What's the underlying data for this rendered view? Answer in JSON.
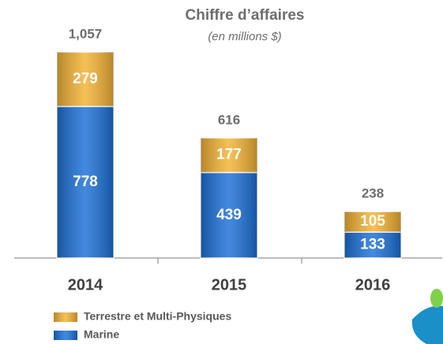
{
  "chart_data": {
    "type": "stacked_bar",
    "title": "Chiffre d’affaires",
    "subtitle": "(en millions $)",
    "categories": [
      "2014",
      "2015",
      "2016"
    ],
    "series": [
      {
        "name": "Marine",
        "color": "#1a6fd6",
        "values": [
          778,
          439,
          133
        ]
      },
      {
        "name": "Terrestre et Multi-Physiques",
        "color": "#f2b233",
        "values": [
          279,
          177,
          105
        ]
      }
    ],
    "totals": [
      1057,
      616,
      238
    ],
    "totals_labels": [
      "1,057",
      "616",
      "238"
    ]
  }
}
